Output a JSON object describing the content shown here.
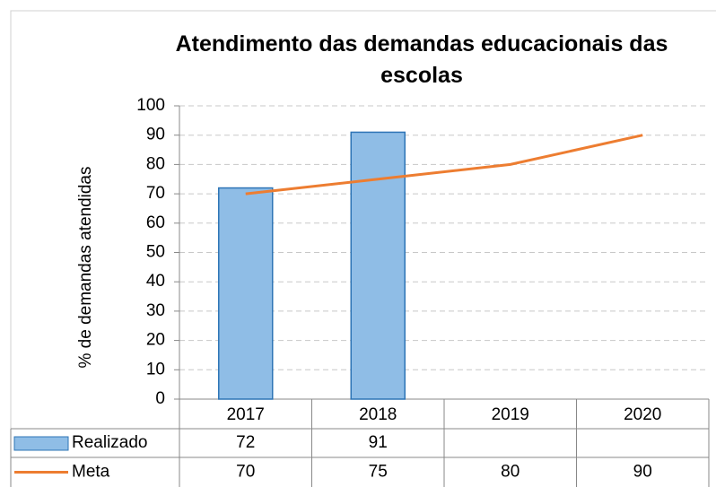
{
  "chart_data": {
    "type": "bar",
    "title": "Atendimento das demandas educacionais das escolas",
    "y_label": "% de demandas atendidas",
    "categories": [
      "2017",
      "2018",
      "2019",
      "2020"
    ],
    "series": [
      {
        "name": "Realizado",
        "type": "bar",
        "color": "#8fbde6",
        "values": [
          72,
          91,
          null,
          null
        ]
      },
      {
        "name": "Meta",
        "type": "line",
        "color": "#ed7d31",
        "values": [
          70,
          75,
          80,
          90
        ]
      }
    ],
    "ylim": [
      0,
      100
    ],
    "yticks": [
      0,
      10,
      20,
      30,
      40,
      50,
      60,
      70,
      80,
      90,
      100
    ],
    "grid": true
  }
}
